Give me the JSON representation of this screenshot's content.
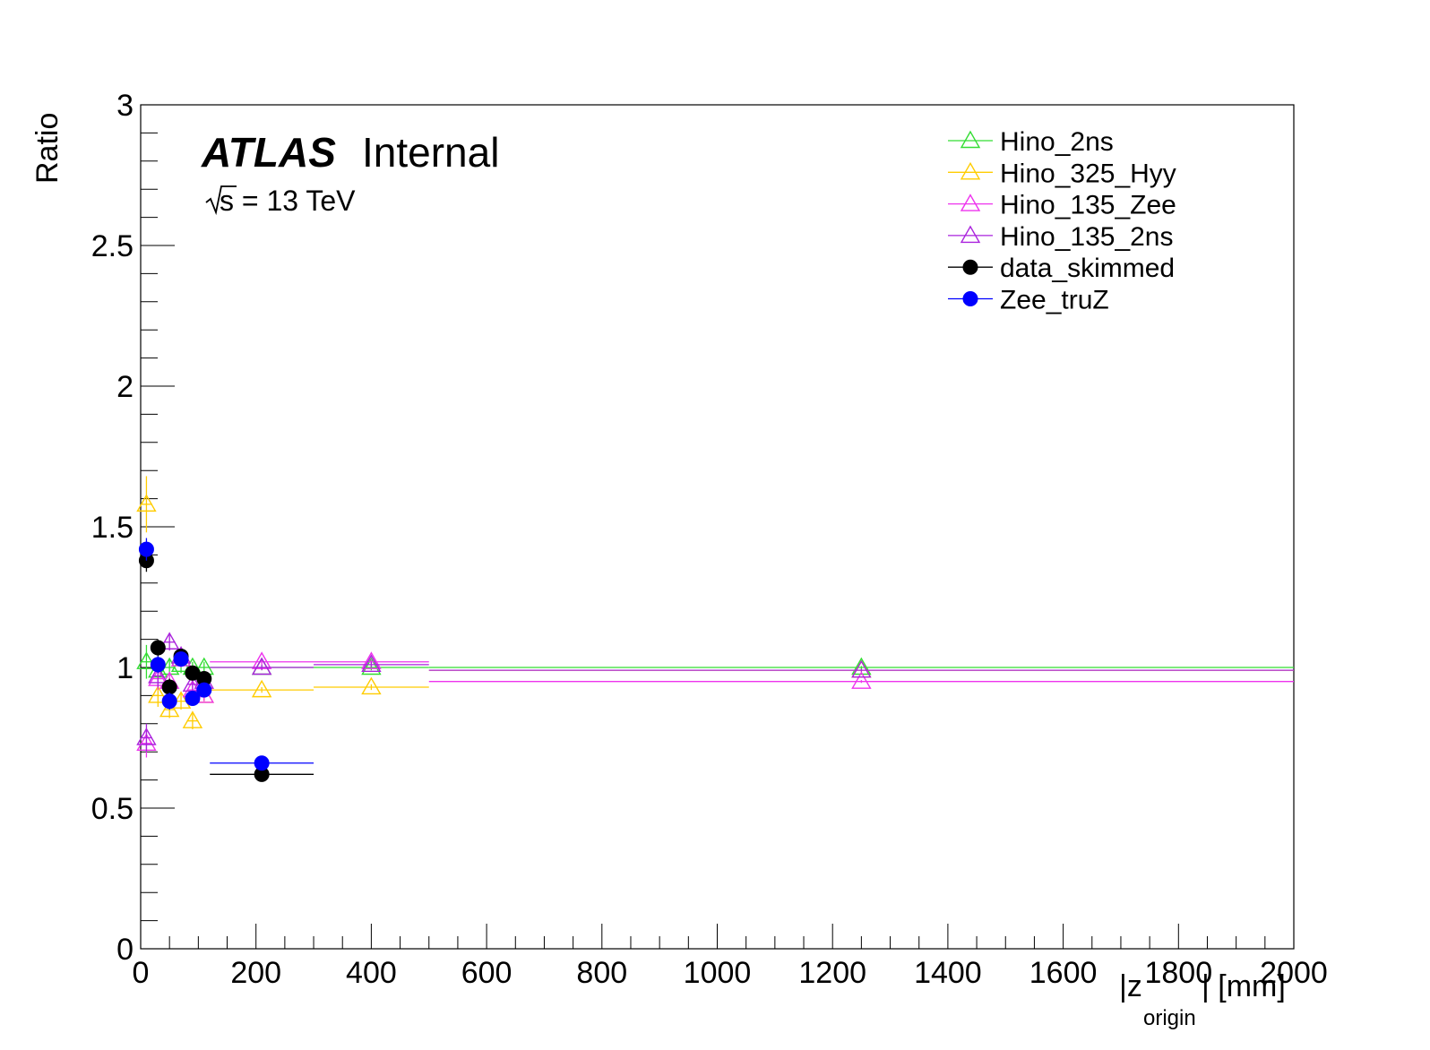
{
  "chart_data": {
    "type": "scatter",
    "title": "",
    "xlabel_main": "|z",
    "xlabel_sub": "origin",
    "xlabel_tail": "| [mm]",
    "ylabel": "Ratio",
    "xlim": [
      0,
      2000
    ],
    "ylim": [
      0,
      3
    ],
    "x_ticks": [
      0,
      200,
      400,
      600,
      800,
      1000,
      1200,
      1400,
      1600,
      1800,
      2000
    ],
    "x_tick_labels": [
      "0",
      "200",
      "400",
      "600",
      "800",
      "1000",
      "1200",
      "1400",
      "1600",
      "1800",
      "2000"
    ],
    "y_ticks": [
      0,
      0.5,
      1,
      1.5,
      2,
      2.5,
      3
    ],
    "y_tick_labels": [
      "0",
      "0.5",
      "1",
      "1.5",
      "2",
      "2.5",
      "3"
    ],
    "grid": false,
    "legend_position": "top-right",
    "atlas_label": "ATLAS",
    "atlas_status": "Internal",
    "energy_label": "s = 13 TeV",
    "bin_edges": [
      0,
      20,
      40,
      60,
      80,
      100,
      120,
      300,
      500,
      2000
    ],
    "series": [
      {
        "name": "Hino_2ns",
        "color": "#33dd33",
        "marker": "open-triangle",
        "x": [
          10,
          30,
          50,
          70,
          90,
          110,
          210,
          400,
          1250
        ],
        "y": [
          1.02,
          0.99,
          1.0,
          1.01,
          1.0,
          1.0,
          1.0,
          1.0,
          1.0
        ],
        "yerr": [
          0.06,
          0.04,
          0.03,
          0.03,
          0.02,
          0.02,
          0.01,
          0.01,
          0.005
        ]
      },
      {
        "name": "Hino_325_Hyy",
        "color": "#ffcc00",
        "marker": "open-triangle",
        "x": [
          10,
          30,
          50,
          70,
          90,
          110,
          210,
          400,
          1250
        ],
        "y": [
          1.58,
          0.9,
          0.85,
          0.88,
          0.81,
          0.9,
          0.92,
          0.93,
          0.99
        ],
        "yerr": [
          0.1,
          0.04,
          0.03,
          0.03,
          0.03,
          0.02,
          0.01,
          0.01,
          0.005
        ]
      },
      {
        "name": "Hino_135_Zee",
        "color": "#ee33ee",
        "marker": "open-triangle",
        "x": [
          10,
          30,
          50,
          70,
          90,
          110,
          210,
          400,
          1250
        ],
        "y": [
          0.73,
          0.96,
          0.95,
          1.03,
          0.92,
          0.9,
          1.02,
          1.02,
          0.95
        ],
        "yerr": [
          0.05,
          0.04,
          0.03,
          0.03,
          0.03,
          0.02,
          0.01,
          0.01,
          0.005
        ]
      },
      {
        "name": "Hino_135_2ns",
        "color": "#aa22dd",
        "marker": "open-triangle",
        "x": [
          10,
          30,
          50,
          70,
          90,
          110,
          210,
          400,
          1250
        ],
        "y": [
          0.75,
          0.97,
          1.09,
          1.04,
          0.94,
          0.95,
          1.0,
          1.01,
          0.99
        ],
        "yerr": [
          0.05,
          0.04,
          0.03,
          0.03,
          0.03,
          0.02,
          0.01,
          0.01,
          0.005
        ]
      },
      {
        "name": "data_skimmed",
        "color": "#000000",
        "marker": "filled-circle",
        "x": [
          10,
          30,
          50,
          70,
          90,
          110,
          210
        ],
        "y": [
          1.38,
          1.07,
          0.93,
          1.04,
          0.98,
          0.96,
          0.62
        ],
        "yerr": [
          0.04,
          0.03,
          0.03,
          0.02,
          0.02,
          0.02,
          0.02
        ]
      },
      {
        "name": "Zee_truZ",
        "color": "#0000ff",
        "marker": "filled-circle",
        "x": [
          10,
          30,
          50,
          70,
          90,
          110,
          210
        ],
        "y": [
          1.42,
          1.01,
          0.88,
          1.03,
          0.89,
          0.92,
          0.66
        ],
        "yerr": [
          0.04,
          0.03,
          0.03,
          0.02,
          0.02,
          0.02,
          0.02
        ]
      }
    ]
  }
}
